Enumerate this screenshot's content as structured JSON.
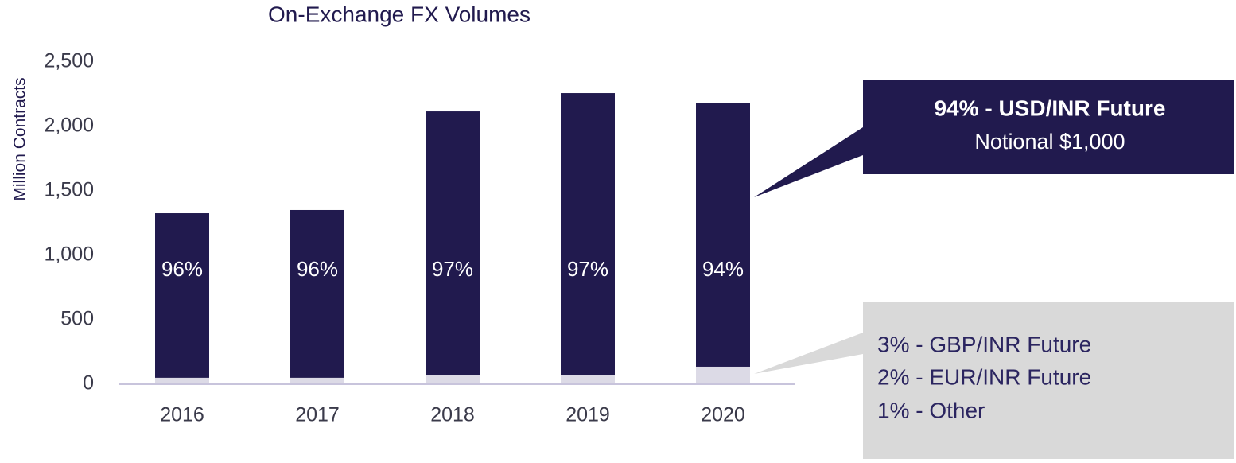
{
  "chart_data": {
    "type": "bar",
    "stacked": true,
    "title": "On-Exchange FX Volumes",
    "y_label": "Million Contracts",
    "categories": [
      "2016",
      "2017",
      "2018",
      "2019",
      "2020"
    ],
    "series": [
      {
        "color": "#dcdae6",
        "values": [
          50,
          50,
          74,
          68,
          136
        ]
      },
      {
        "color": "#211a4e",
        "values": [
          1277,
          1302,
          2043,
          2191,
          2043
        ]
      }
    ],
    "bar_labels": [
      "96%",
      "96%",
      "97%",
      "97%",
      "94%"
    ],
    "ylim": [
      0,
      2500
    ],
    "yticks": [
      0,
      500,
      {
        "value": 1000,
        "label": "1,000"
      },
      {
        "value": 1500,
        "label": "1,500"
      },
      {
        "value": 2000,
        "label": "2,000"
      },
      {
        "value": 2500,
        "label": "2,500"
      }
    ],
    "callouts": [
      {
        "title": "94% - USD/INR Future",
        "text": "Notional $1,000"
      },
      {
        "lines": [
          "3% - GBP/INR Future",
          "2% - EUR/INR Future",
          "1% - Other"
        ]
      }
    ]
  }
}
